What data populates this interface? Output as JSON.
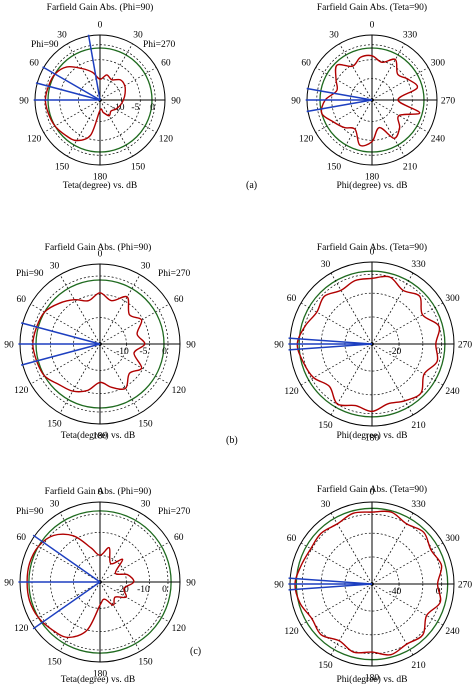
{
  "captions": [
    "(a)",
    "(b)",
    "(c)"
  ],
  "colors": {
    "pattern": "#b00000",
    "reference_ring": "#1f6a1f",
    "beam_line": "#1d3fc0",
    "grid": "#000000"
  },
  "chart_data": [
    {
      "type": "polar",
      "id": "a-left",
      "title": "Farfield Gain Abs. (Phi=90)",
      "xlabel": "Teta(degree) vs. dB",
      "direction": "teta",
      "angle_labels": [
        "0",
        "30",
        "60",
        "90",
        "120",
        "150",
        "180",
        "150",
        "120",
        "90",
        "60",
        "30"
      ],
      "ring_labels": [
        "-10",
        "-5",
        "0"
      ],
      "annotations": [
        "Phi=90",
        "Phi=270"
      ],
      "beam_lines_deg": [
        -10,
        -60,
        -90,
        -75
      ],
      "r_min": -20,
      "r_max": 5,
      "pattern": {
        "angles_deg": [
          0,
          15,
          30,
          45,
          60,
          75,
          90,
          105,
          120,
          135,
          150,
          165,
          180,
          195,
          210,
          225,
          240,
          255,
          270,
          285,
          300,
          315,
          330,
          345
        ],
        "gain_db": [
          -12,
          -10,
          -11,
          -9,
          -9,
          -10,
          -11,
          -12,
          -13,
          -14,
          -13,
          -15,
          -16,
          -6,
          -2,
          -1,
          0,
          0.5,
          1,
          0.5,
          0,
          -2,
          -6,
          -9
        ]
      }
    },
    {
      "type": "polar",
      "id": "a-right",
      "title": "Farfield Gain Abs. (Teta=90)",
      "xlabel": "Phi(degree) vs. dB",
      "direction": "phi",
      "angle_labels": [
        "0",
        "330",
        "300",
        "270",
        "240",
        "210",
        "180",
        "150",
        "120",
        "90",
        "60",
        "30"
      ],
      "ring_labels": [],
      "annotations": [],
      "beam_lines_deg": [
        -80,
        -90,
        -100
      ],
      "r_min": -20,
      "r_max": 5,
      "pattern": {
        "angles_deg": [
          0,
          15,
          30,
          45,
          60,
          75,
          90,
          105,
          120,
          135,
          150,
          165,
          180,
          195,
          210,
          225,
          240,
          255,
          270,
          285,
          300,
          315,
          330,
          345
        ],
        "gain_db": [
          -3,
          -5,
          -2,
          -6,
          -4,
          -2,
          -10,
          -1,
          -8,
          -5,
          -3,
          -9,
          -4,
          -2,
          -7,
          -5,
          -3,
          0,
          -2,
          -6,
          -4,
          -1,
          -5,
          -3
        ]
      }
    },
    {
      "type": "polar",
      "id": "b-left",
      "title": "Farfield Gain Abs. (Phi=90)",
      "xlabel": "Teta(degree) vs. dB",
      "direction": "teta",
      "angle_labels": [
        "0",
        "30",
        "60",
        "90",
        "120",
        "150",
        "180",
        "150",
        "120",
        "90",
        "60",
        "30"
      ],
      "ring_labels": [
        "-10",
        "-5",
        "0"
      ],
      "annotations": [
        "Phi=90",
        "Phi=270"
      ],
      "beam_lines_deg": [
        -75,
        -90,
        -105
      ],
      "r_min": -20,
      "r_max": 5,
      "pattern": {
        "angles_deg": [
          0,
          15,
          30,
          45,
          60,
          75,
          90,
          105,
          120,
          135,
          150,
          165,
          180,
          195,
          210,
          225,
          240,
          255,
          270,
          285,
          300,
          315,
          330,
          345
        ],
        "gain_db": [
          -4,
          -6,
          -3,
          -7,
          -5,
          -8,
          -6,
          -9,
          -5,
          -7,
          -4,
          -6,
          -8,
          -5,
          -3,
          -2,
          0,
          0.5,
          1,
          0.5,
          0,
          -2,
          -4,
          -6
        ]
      }
    },
    {
      "type": "polar",
      "id": "b-right",
      "title": "Farfield Gain Abs. (Teta=90)",
      "xlabel": "Phi(degree) vs. dB",
      "direction": "phi",
      "angle_labels": [
        "0",
        "330",
        "300",
        "270",
        "240",
        "210",
        "180",
        "150",
        "120",
        "90",
        "60",
        "30"
      ],
      "ring_labels": [
        "-20",
        "0"
      ],
      "annotations": [],
      "beam_lines_deg": [
        -86,
        -90,
        -94
      ],
      "r_min": -40,
      "r_max": 5,
      "pattern": {
        "angles_deg": [
          0,
          15,
          30,
          45,
          60,
          75,
          90,
          105,
          120,
          135,
          150,
          165,
          180,
          195,
          210,
          225,
          240,
          255,
          270,
          285,
          300,
          315,
          330,
          345
        ],
        "gain_db": [
          -4,
          -2,
          -6,
          -3,
          -8,
          -2,
          -5,
          -3,
          -7,
          -2,
          -4,
          -6,
          -3,
          -5,
          -2,
          -7,
          -3,
          -1,
          1,
          -2,
          -5,
          -3,
          -6,
          -4
        ]
      }
    },
    {
      "type": "polar",
      "id": "c-left",
      "title": "Farfield Gain Abs. (Phi=90)",
      "xlabel": "Teta(degree) vs. dB",
      "direction": "teta",
      "angle_labels": [
        "0",
        "30",
        "60",
        "90",
        "120",
        "150",
        "180",
        "150",
        "120",
        "90",
        "60",
        "30"
      ],
      "ring_labels": [
        "-20",
        "-10",
        "0"
      ],
      "annotations": [
        "Phi=90",
        "Phi=270"
      ],
      "beam_lines_deg": [
        -55,
        -90,
        -125
      ],
      "r_min": -40,
      "r_max": 5,
      "pattern": {
        "angles_deg": [
          0,
          15,
          30,
          45,
          60,
          75,
          90,
          105,
          120,
          135,
          150,
          165,
          180,
          195,
          210,
          225,
          240,
          255,
          270,
          285,
          300,
          315,
          330,
          345
        ],
        "gain_db": [
          -25,
          -20,
          -28,
          -22,
          -30,
          -24,
          -21,
          -26,
          -23,
          -28,
          -25,
          -30,
          -27,
          -12,
          -4,
          -2,
          0,
          1,
          1,
          1,
          0,
          -3,
          -10,
          -20
        ]
      }
    },
    {
      "type": "polar",
      "id": "c-right",
      "title": "Farfield Gain Abs. (Teta=90)",
      "xlabel": "Phi(degree) vs. dB",
      "direction": "phi",
      "angle_labels": [
        "0",
        "330",
        "300",
        "270",
        "240",
        "210",
        "180",
        "150",
        "120",
        "90",
        "60",
        "30"
      ],
      "ring_labels": [
        "-40",
        "0"
      ],
      "annotations": [],
      "beam_lines_deg": [
        -86,
        -90,
        -94
      ],
      "r_min": -60,
      "r_max": 5,
      "pattern": {
        "angles_deg": [
          0,
          15,
          30,
          45,
          60,
          75,
          90,
          105,
          120,
          135,
          150,
          165,
          180,
          195,
          210,
          225,
          240,
          255,
          270,
          285,
          300,
          315,
          330,
          345
        ],
        "gain_db": [
          -3,
          -1,
          -5,
          -2,
          -6,
          -3,
          -8,
          -4,
          -10,
          -3,
          -5,
          -2,
          -6,
          -4,
          -8,
          -3,
          -5,
          -1,
          1,
          -2,
          -4,
          -3,
          -5,
          -2
        ]
      }
    }
  ]
}
